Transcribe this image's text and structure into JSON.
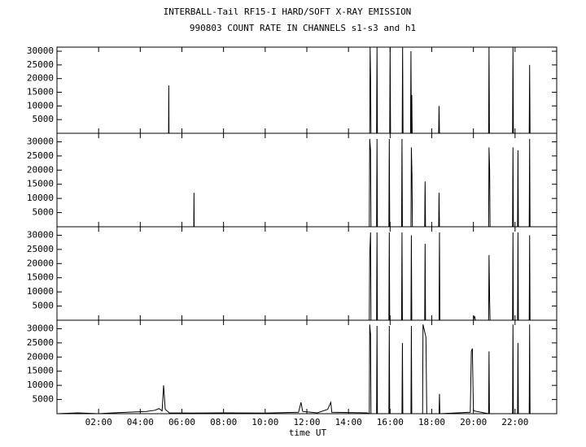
{
  "chart_data": [
    {
      "type": "line",
      "title": "INTERBALL-Tail RF15-I HARD/SOFT X-RAY EMISSION",
      "subtitle": "990803  COUNT RATE IN CHANNELS s1-s3 and h1",
      "color": "#000000",
      "x": [
        0,
        5.36,
        5.37,
        5.38,
        15.02,
        15.04,
        15.06,
        15.08,
        15.35,
        15.37,
        15.39,
        15.98,
        16.0,
        16.02,
        16.58,
        16.6,
        16.62,
        16.98,
        17.0,
        17.02,
        17.04,
        17.06,
        18.33,
        18.35,
        18.37,
        20.73,
        20.75,
        20.77,
        21.88,
        21.9,
        21.92,
        22.68,
        22.7,
        22.72,
        24
      ],
      "values": [
        0,
        0,
        17500,
        0,
        0,
        31500,
        21000,
        0,
        0,
        31500,
        0,
        0,
        31500,
        0,
        0,
        31500,
        0,
        0,
        30000,
        0,
        14000,
        0,
        0,
        10000,
        0,
        0,
        31500,
        0,
        0,
        31500,
        0,
        0,
        25000,
        0,
        0
      ],
      "xlim": [
        0,
        24
      ],
      "ylim": [
        0,
        31500
      ],
      "yticks": [
        5000,
        10000,
        15000,
        20000,
        25000,
        30000
      ]
    },
    {
      "type": "line",
      "color": "#000000",
      "x": [
        0,
        6.57,
        6.58,
        6.59,
        15.0,
        15.02,
        15.06,
        15.08,
        15.35,
        15.37,
        15.39,
        15.94,
        15.96,
        15.98,
        16.55,
        16.57,
        16.59,
        17.0,
        17.02,
        17.05,
        17.07,
        17.66,
        17.68,
        17.7,
        18.33,
        18.35,
        18.37,
        20.73,
        20.75,
        20.78,
        20.8,
        21.88,
        21.9,
        21.92,
        22.12,
        22.14,
        22.16,
        22.68,
        22.7,
        22.72,
        24
      ],
      "values": [
        0,
        0,
        12000,
        0,
        0,
        31000,
        27000,
        0,
        0,
        31000,
        0,
        0,
        31000,
        0,
        0,
        31000,
        0,
        0,
        28000,
        18000,
        0,
        0,
        16000,
        0,
        0,
        12000,
        0,
        0,
        28000,
        20000,
        0,
        0,
        28000,
        0,
        0,
        27000,
        0,
        0,
        31000,
        0,
        0
      ],
      "xlim": [
        0,
        24
      ],
      "ylim": [
        0,
        33000
      ],
      "yticks": [
        5000,
        10000,
        15000,
        20000,
        25000,
        30000
      ]
    },
    {
      "type": "line",
      "color": "#000000",
      "x": [
        0,
        15.0,
        15.02,
        15.06,
        15.08,
        15.35,
        15.37,
        15.39,
        15.94,
        15.96,
        15.98,
        16.55,
        16.57,
        16.59,
        17.0,
        17.02,
        17.04,
        17.66,
        17.68,
        17.7,
        18.35,
        18.37,
        18.39,
        20.0,
        20.05,
        20.1,
        20.73,
        20.75,
        20.78,
        20.8,
        21.88,
        21.9,
        21.92,
        22.12,
        22.14,
        22.16,
        22.68,
        22.7,
        22.72,
        24
      ],
      "values": [
        0,
        0,
        23000,
        31000,
        0,
        0,
        31000,
        0,
        0,
        31000,
        0,
        0,
        31000,
        0,
        0,
        30000,
        0,
        0,
        27000,
        0,
        0,
        31000,
        0,
        0,
        1500,
        0,
        0,
        23000,
        7000,
        0,
        0,
        31000,
        0,
        0,
        31000,
        0,
        0,
        30000,
        0,
        0
      ],
      "xlim": [
        0,
        24
      ],
      "ylim": [
        0,
        33000
      ],
      "yticks": [
        5000,
        10000,
        15000,
        20000,
        25000,
        30000
      ]
    },
    {
      "type": "line",
      "color": "#000000",
      "xlabel": "time UT",
      "x": [
        0,
        1.0,
        2.0,
        3.0,
        4.3,
        4.7,
        4.9,
        5.05,
        5.12,
        5.2,
        5.4,
        6.5,
        8.0,
        10.0,
        11.6,
        11.72,
        11.8,
        12.5,
        13.0,
        13.15,
        13.2,
        14.9,
        15.0,
        15.02,
        15.06,
        15.08,
        15.35,
        15.37,
        15.39,
        15.94,
        15.96,
        15.98,
        16.57,
        16.59,
        16.61,
        17.0,
        17.02,
        17.04,
        17.56,
        17.58,
        17.72,
        17.76,
        18.35,
        18.37,
        18.39,
        19.85,
        19.9,
        19.95,
        20.0,
        20.73,
        20.75,
        20.77,
        21.88,
        21.9,
        21.92,
        22.12,
        22.14,
        22.16,
        22.68,
        22.7,
        22.72,
        24
      ],
      "values": [
        0,
        300,
        0,
        400,
        800,
        1200,
        1800,
        1000,
        10000,
        1500,
        300,
        200,
        300,
        200,
        500,
        4000,
        800,
        300,
        1500,
        4000,
        500,
        300,
        0,
        31500,
        28000,
        0,
        0,
        31000,
        0,
        0,
        31000,
        0,
        0,
        25000,
        0,
        0,
        31000,
        0,
        0,
        31500,
        27000,
        0,
        0,
        7000,
        0,
        500,
        22000,
        23000,
        1000,
        0,
        22000,
        0,
        0,
        31500,
        0,
        0,
        25000,
        0,
        0,
        31500,
        0,
        0
      ],
      "xlim": [
        0,
        24
      ],
      "ylim": [
        0,
        33000
      ],
      "yticks": [
        5000,
        10000,
        15000,
        20000,
        25000,
        30000
      ],
      "xticks": [
        {
          "value": 2,
          "label": "02:00"
        },
        {
          "value": 4,
          "label": "04:00"
        },
        {
          "value": 6,
          "label": "06:00"
        },
        {
          "value": 8,
          "label": "08:00"
        },
        {
          "value": 10,
          "label": "10:00"
        },
        {
          "value": 12,
          "label": "12:00"
        },
        {
          "value": 14,
          "label": "14:00"
        },
        {
          "value": 16,
          "label": "16:00"
        },
        {
          "value": 18,
          "label": "18:00"
        },
        {
          "value": 20,
          "label": "20:00"
        },
        {
          "value": 22,
          "label": "22:00"
        }
      ]
    }
  ]
}
